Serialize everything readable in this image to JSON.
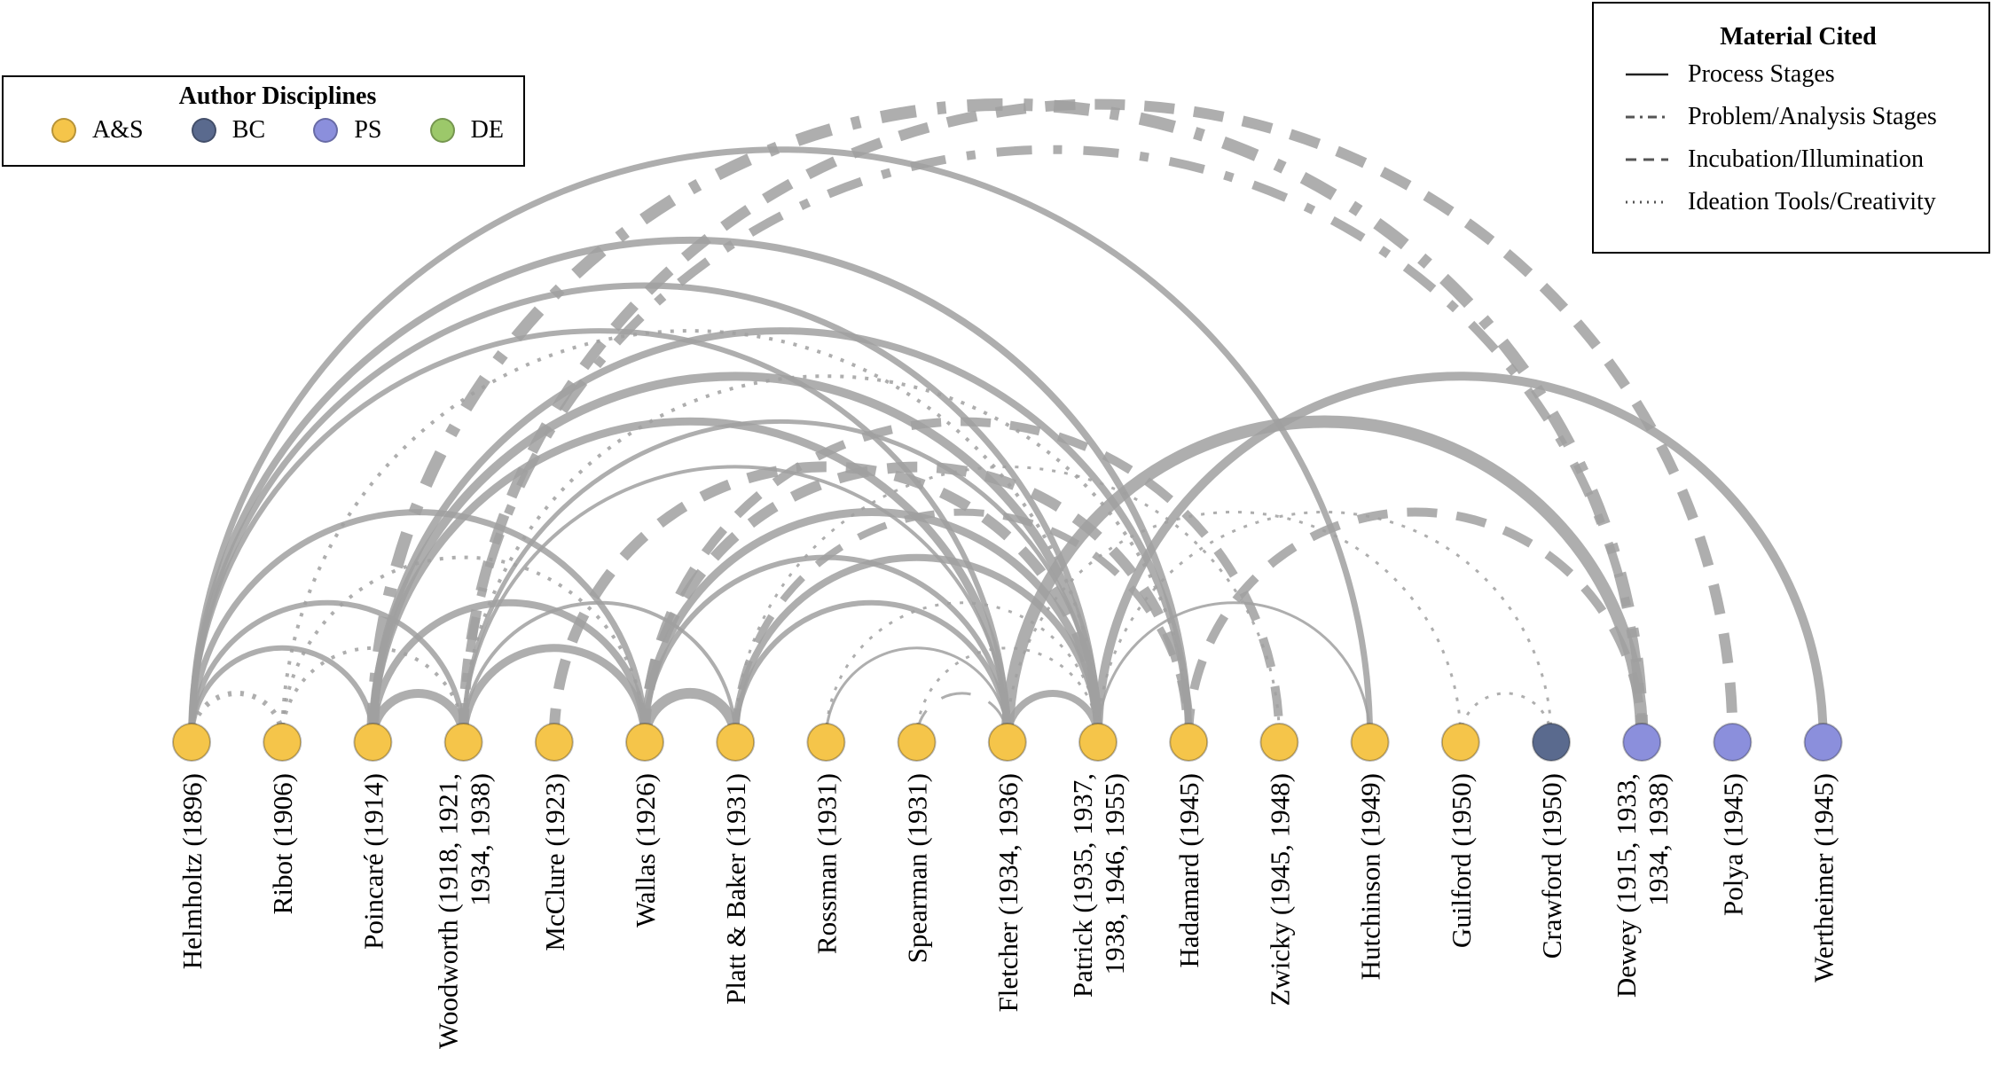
{
  "colors": {
    "AS": "#f5c54a",
    "BC": "#5a6a8e",
    "PS": "#8b8fdc",
    "DE": "#9cc86a",
    "arc": "#a0a0a0"
  },
  "disciplines_legend": {
    "title": "Author Disciplines",
    "items": [
      {
        "label": "A&S",
        "color": "#f5c54a"
      },
      {
        "label": "BC",
        "color": "#5a6a8e"
      },
      {
        "label": "PS",
        "color": "#8b8fdc"
      },
      {
        "label": "DE",
        "color": "#9cc86a"
      }
    ]
  },
  "material_legend": {
    "title": "Material Cited",
    "items": [
      {
        "label": "Process Stages",
        "style": "solid"
      },
      {
        "label": "Problem/Analysis Stages",
        "style": "dashdot"
      },
      {
        "label": "Incubation/Illumination",
        "style": "dash"
      },
      {
        "label": "Ideation Tools/Creativity",
        "style": "dot"
      }
    ]
  },
  "nodes": [
    {
      "lines": [
        "Helmholtz (1896)"
      ],
      "disc": "AS"
    },
    {
      "lines": [
        "Ribot (1906)"
      ],
      "disc": "AS"
    },
    {
      "lines": [
        "Poincaré (1914)"
      ],
      "disc": "AS"
    },
    {
      "lines": [
        "Woodworth (1918, 1921,",
        "1934, 1938)"
      ],
      "disc": "AS"
    },
    {
      "lines": [
        "McClure (1923)"
      ],
      "disc": "AS"
    },
    {
      "lines": [
        "Wallas (1926)"
      ],
      "disc": "AS"
    },
    {
      "lines": [
        "Platt & Baker (1931)"
      ],
      "disc": "AS"
    },
    {
      "lines": [
        "Rossman (1931)"
      ],
      "disc": "AS"
    },
    {
      "lines": [
        "Spearman (1931)"
      ],
      "disc": "AS"
    },
    {
      "lines": [
        "Fletcher (1934, 1936)"
      ],
      "disc": "AS"
    },
    {
      "lines": [
        "Patrick (1935, 1937,",
        "1938, 1946, 1955)"
      ],
      "disc": "AS"
    },
    {
      "lines": [
        "Hadamard (1945)"
      ],
      "disc": "AS"
    },
    {
      "lines": [
        "Zwicky (1945, 1948)"
      ],
      "disc": "AS"
    },
    {
      "lines": [
        "Hutchinson (1949)"
      ],
      "disc": "AS"
    },
    {
      "lines": [
        "Guilford (1950)"
      ],
      "disc": "AS"
    },
    {
      "lines": [
        "Crawford (1950)"
      ],
      "disc": "BC"
    },
    {
      "lines": [
        "Dewey (1915, 1933,",
        "1934, 1938)"
      ],
      "disc": "PS"
    },
    {
      "lines": [
        "Polya (1945)"
      ],
      "disc": "PS"
    },
    {
      "lines": [
        "Wertheimer (1945)"
      ],
      "disc": "PS"
    }
  ],
  "links": [
    {
      "a": 0,
      "b": 11,
      "style": "solid",
      "w": 8
    },
    {
      "a": 0,
      "b": 10,
      "style": "solid",
      "w": 7
    },
    {
      "a": 0,
      "b": 9,
      "style": "solid",
      "w": 6
    },
    {
      "a": 0,
      "b": 5,
      "style": "solid",
      "w": 7
    },
    {
      "a": 0,
      "b": 3,
      "style": "solid",
      "w": 6
    },
    {
      "a": 0,
      "b": 2,
      "style": "solid",
      "w": 6
    },
    {
      "a": 0,
      "b": 13,
      "style": "solid",
      "w": 7
    },
    {
      "a": 0,
      "b": 1,
      "style": "dot",
      "w": 6
    },
    {
      "a": 1,
      "b": 10,
      "style": "dot",
      "w": 4
    },
    {
      "a": 1,
      "b": 5,
      "style": "dot",
      "w": 4
    },
    {
      "a": 1,
      "b": 3,
      "style": "dot",
      "w": 4
    },
    {
      "a": 2,
      "b": 3,
      "style": "solid",
      "w": 10
    },
    {
      "a": 2,
      "b": 5,
      "style": "solid",
      "w": 8
    },
    {
      "a": 2,
      "b": 9,
      "style": "solid",
      "w": 9
    },
    {
      "a": 2,
      "b": 10,
      "style": "solid",
      "w": 10
    },
    {
      "a": 2,
      "b": 11,
      "style": "solid",
      "w": 8
    },
    {
      "a": 2,
      "b": 16,
      "style": "dashdot",
      "w": 14
    },
    {
      "a": 3,
      "b": 5,
      "style": "solid",
      "w": 9
    },
    {
      "a": 3,
      "b": 6,
      "style": "solid",
      "w": 4
    },
    {
      "a": 3,
      "b": 9,
      "style": "solid",
      "w": 4
    },
    {
      "a": 3,
      "b": 10,
      "style": "solid",
      "w": 5
    },
    {
      "a": 3,
      "b": 16,
      "style": "dashdot",
      "w": 10
    },
    {
      "a": 3,
      "b": 17,
      "style": "dash",
      "w": 12
    },
    {
      "a": 3,
      "b": 11,
      "style": "dot",
      "w": 4
    },
    {
      "a": 4,
      "b": 10,
      "style": "dash",
      "w": 12
    },
    {
      "a": 5,
      "b": 6,
      "style": "solid",
      "w": 12
    },
    {
      "a": 5,
      "b": 9,
      "style": "solid",
      "w": 6
    },
    {
      "a": 5,
      "b": 10,
      "style": "solid",
      "w": 9
    },
    {
      "a": 5,
      "b": 11,
      "style": "dash",
      "w": 12
    },
    {
      "a": 5,
      "b": 12,
      "style": "dash",
      "w": 10
    },
    {
      "a": 6,
      "b": 10,
      "style": "solid",
      "w": 8
    },
    {
      "a": 6,
      "b": 9,
      "style": "solid",
      "w": 6
    },
    {
      "a": 6,
      "b": 11,
      "style": "dash",
      "w": 8
    },
    {
      "a": 6,
      "b": 12,
      "style": "dot",
      "w": 3
    },
    {
      "a": 7,
      "b": 10,
      "style": "dot",
      "w": 3
    },
    {
      "a": 7,
      "b": 9,
      "style": "solid",
      "w": 3
    },
    {
      "a": 8,
      "b": 9,
      "style": "dash",
      "w": 3
    },
    {
      "a": 8,
      "b": 10,
      "style": "dot",
      "w": 3
    },
    {
      "a": 9,
      "b": 10,
      "style": "solid",
      "w": 8
    },
    {
      "a": 9,
      "b": 16,
      "style": "solid",
      "w": 14
    },
    {
      "a": 9,
      "b": 14,
      "style": "dot",
      "w": 3
    },
    {
      "a": 10,
      "b": 18,
      "style": "solid",
      "w": 10
    },
    {
      "a": 10,
      "b": 13,
      "style": "solid",
      "w": 3
    },
    {
      "a": 10,
      "b": 15,
      "style": "dot",
      "w": 3
    },
    {
      "a": 11,
      "b": 16,
      "style": "dash",
      "w": 10
    },
    {
      "a": 14,
      "b": 15,
      "style": "dot",
      "w": 3
    }
  ]
}
